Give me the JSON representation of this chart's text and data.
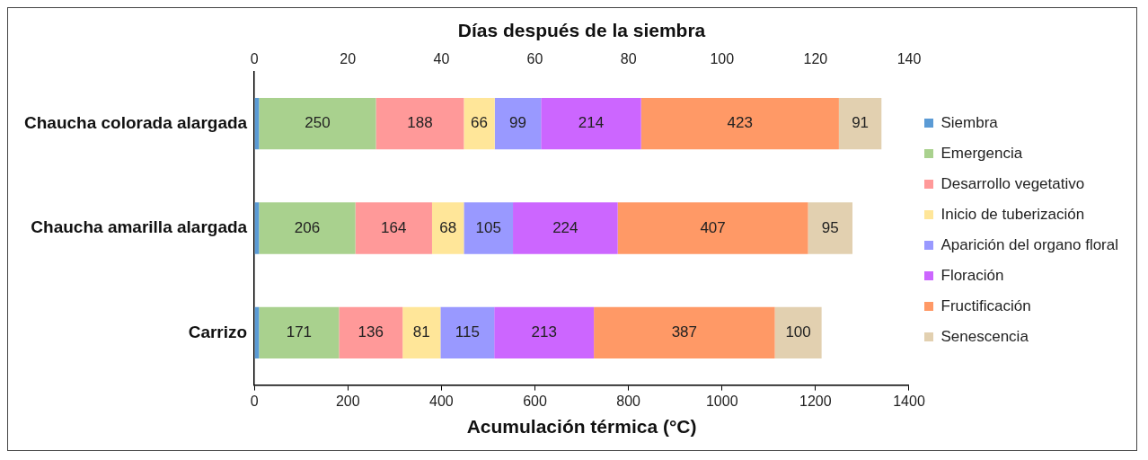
{
  "chart_data": {
    "type": "bar",
    "orientation": "horizontal",
    "stacked": true,
    "categories": [
      "Chaucha colorada alargada",
      "Chaucha amarilla alargada",
      "Carrizo"
    ],
    "xlabel": "Acumulación térmica (°C)",
    "x2label": "Días después de la siembra",
    "xlim": [
      0,
      1400
    ],
    "xticks": [
      0,
      200,
      400,
      600,
      800,
      1000,
      1200,
      1400
    ],
    "x2lim": [
      0,
      140
    ],
    "x2ticks": [
      0,
      20,
      40,
      60,
      80,
      100,
      120,
      140
    ],
    "grid": false,
    "legend": "right",
    "series": [
      {
        "name": "Siembra",
        "color": "#5b9bd5",
        "values": [
          10,
          10,
          10
        ],
        "value_labels": [
          null,
          null,
          null
        ]
      },
      {
        "name": "Emergencia",
        "color": "#a9d18e",
        "values": [
          250,
          206,
          171
        ],
        "value_labels": [
          "250",
          "206",
          "171"
        ]
      },
      {
        "name": "Desarrollo vegetativo",
        "color": "#ff9999",
        "values": [
          188,
          164,
          136
        ],
        "value_labels": [
          "188",
          "164",
          "136"
        ]
      },
      {
        "name": "Inicio de tuberización",
        "color": "#ffe699",
        "values": [
          66,
          68,
          81
        ],
        "value_labels": [
          "66",
          "68",
          "81"
        ]
      },
      {
        "name": "Aparición del organo floral",
        "color": "#9999ff",
        "values": [
          99,
          105,
          115
        ],
        "value_labels": [
          "99",
          "105",
          "115"
        ]
      },
      {
        "name": "Floración",
        "color": "#cc66ff",
        "values": [
          214,
          224,
          213
        ],
        "value_labels": [
          "214",
          "224",
          "213"
        ]
      },
      {
        "name": "Fructificación",
        "color": "#ff9966",
        "values": [
          423,
          407,
          387
        ],
        "value_labels": [
          "423",
          "407",
          "387"
        ]
      },
      {
        "name": "Senescencia",
        "color": "#e2d0b0",
        "values": [
          91,
          95,
          100
        ],
        "value_labels": [
          "91",
          "95",
          "100"
        ]
      }
    ]
  }
}
